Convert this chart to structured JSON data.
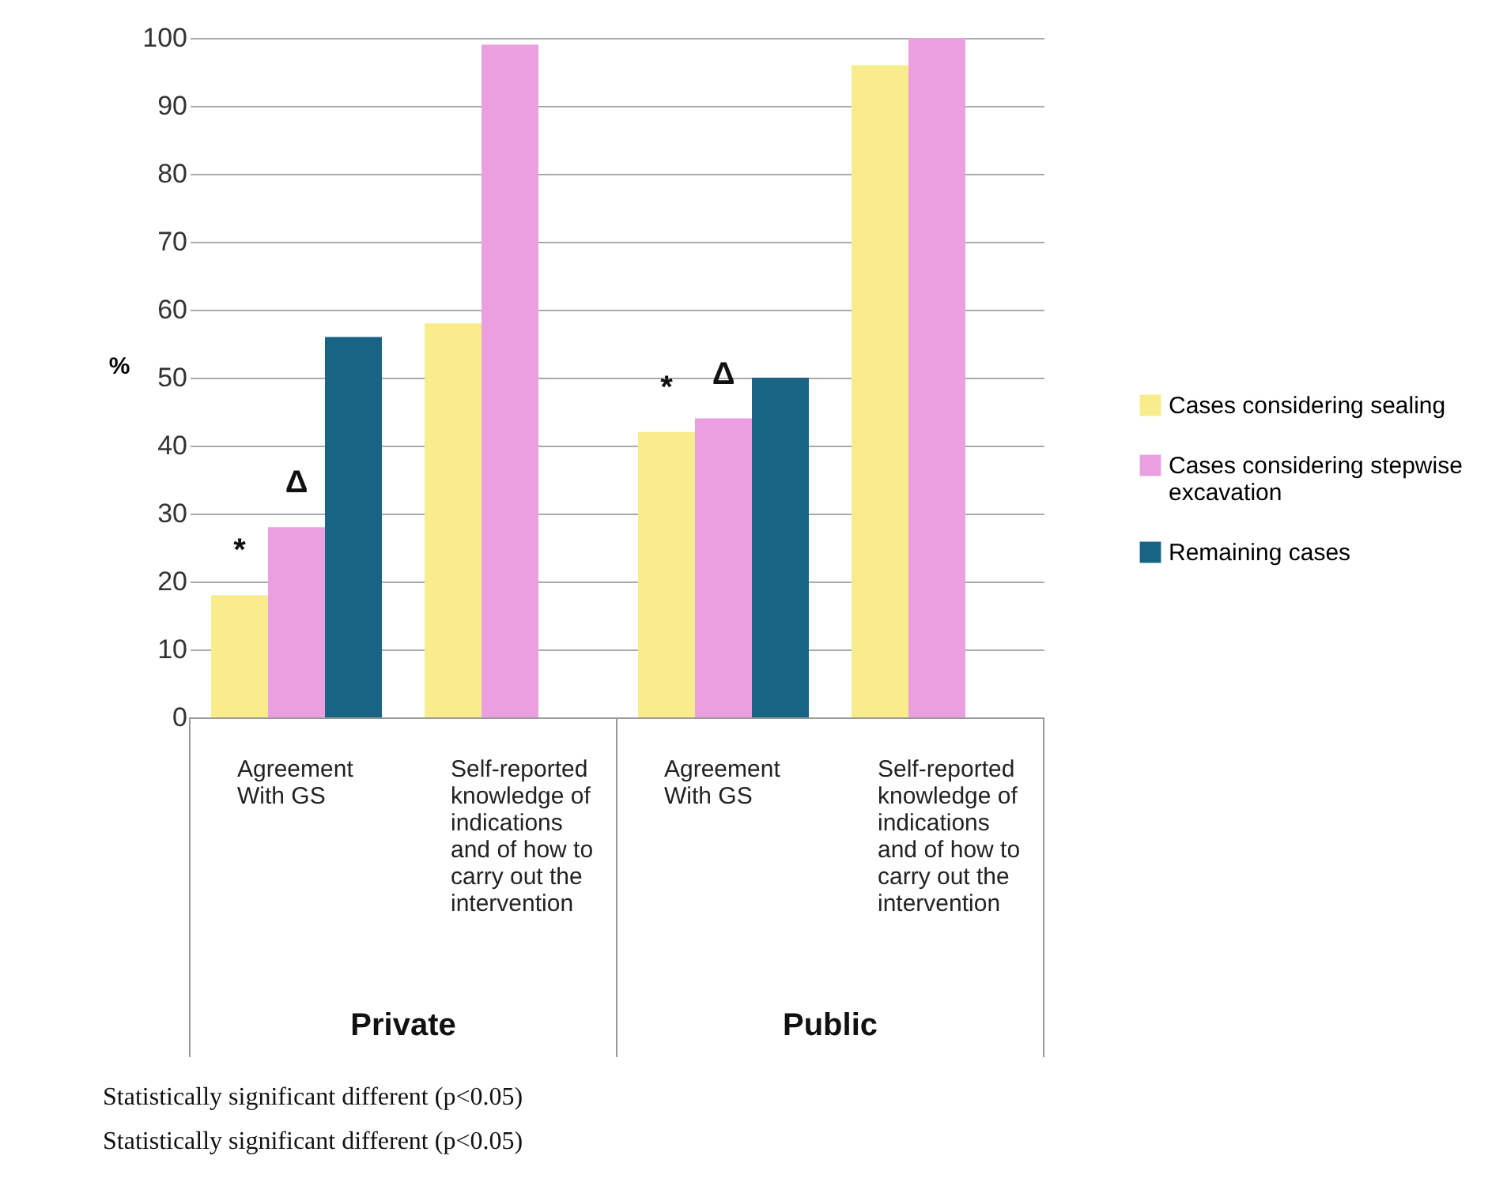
{
  "chart_data": {
    "type": "bar",
    "categories": [
      "Agreement With GS",
      "Self-reported knowledge of indications and of how to carry out the intervention",
      "Agreement With GS",
      "Self-reported knowledge of indications and of how to carry out the intervention"
    ],
    "series": [
      {
        "name": "Cases considering sealing",
        "color": "#f8ec8c",
        "values": [
          18,
          58,
          42,
          96
        ]
      },
      {
        "name": "Cases considering stepwise excavation",
        "color": "#eaa0e0",
        "values": [
          28,
          99,
          44,
          100
        ]
      },
      {
        "name": "Remaining cases",
        "color": "#196385",
        "values": [
          56,
          null,
          50,
          null
        ]
      }
    ],
    "ylabel": "%",
    "ylim": [
      0,
      100
    ],
    "yticks": [
      0,
      10,
      20,
      30,
      40,
      50,
      60,
      70,
      80,
      90,
      100
    ],
    "grid": "y",
    "legend": "right",
    "annotations": [
      "Private",
      "Public",
      "*",
      "Δ",
      "*",
      "Δ",
      "Statistically significant different (p<0.05)",
      "Statistically significant different (p<0.05)"
    ]
  }
}
